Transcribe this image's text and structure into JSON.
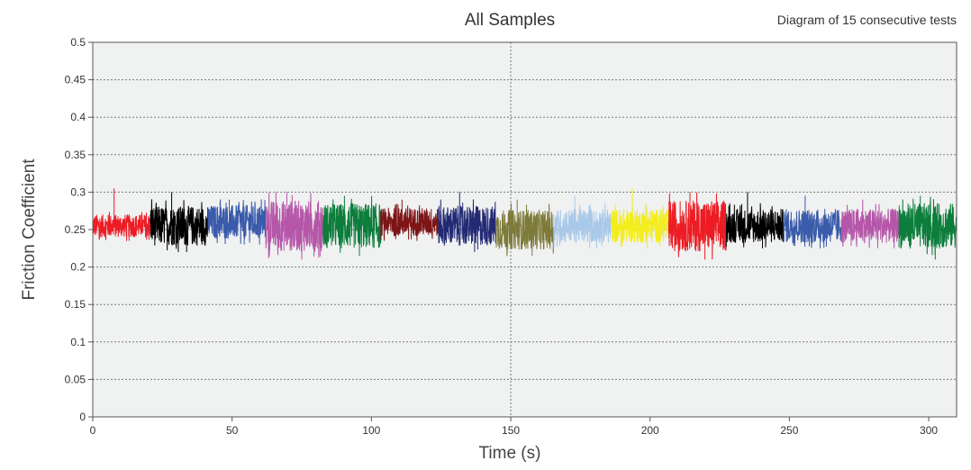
{
  "chart_data": {
    "type": "line",
    "title": "All Samples",
    "subtitle": "Diagram of 15 consecutive tests",
    "xlabel": "Time (s)",
    "ylabel": "Friction Coefficient",
    "xlim": [
      0,
      310
    ],
    "ylim": [
      0,
      0.5
    ],
    "x_ticks": [
      0,
      50,
      100,
      150,
      200,
      250,
      300
    ],
    "y_ticks": [
      0,
      0.05,
      0.1,
      0.15,
      0.2,
      0.25,
      0.3,
      0.35,
      0.4,
      0.45,
      0.5
    ],
    "y_tick_labels": [
      "0",
      "0.05",
      "0.1",
      "0.15",
      "0.2",
      "0.25",
      "0.3",
      "0.35",
      "0.4",
      "0.45",
      "0.5"
    ],
    "grid": true,
    "gridlines": {
      "x": [
        150
      ],
      "y": [
        0.05,
        0.1,
        0.15,
        0.2,
        0.25,
        0.3,
        0.35,
        0.4,
        0.45,
        0.5
      ]
    },
    "background_color": "#f0f1f1",
    "series": [
      {
        "x_range": [
          0,
          20.67
        ],
        "mean": 0.255,
        "min": 0.235,
        "max": 0.305,
        "color": "#ed1c24"
      },
      {
        "x_range": [
          20.67,
          41.33
        ],
        "mean": 0.255,
        "min": 0.22,
        "max": 0.3,
        "color": "#000000"
      },
      {
        "x_range": [
          41.33,
          62
        ],
        "mean": 0.26,
        "min": 0.23,
        "max": 0.29,
        "color": "#3a5bab"
      },
      {
        "x_range": [
          62,
          82.67
        ],
        "mean": 0.255,
        "min": 0.21,
        "max": 0.3,
        "color": "#b556a8"
      },
      {
        "x_range": [
          82.67,
          103.33
        ],
        "mean": 0.255,
        "min": 0.215,
        "max": 0.295,
        "color": "#0c7d3b"
      },
      {
        "x_range": [
          103.33,
          124
        ],
        "mean": 0.26,
        "min": 0.235,
        "max": 0.29,
        "color": "#7d1416"
      },
      {
        "x_range": [
          124,
          144.67
        ],
        "mean": 0.255,
        "min": 0.22,
        "max": 0.3,
        "color": "#232a73"
      },
      {
        "x_range": [
          144.67,
          165.33
        ],
        "mean": 0.25,
        "min": 0.215,
        "max": 0.29,
        "color": "#7d7a3a"
      },
      {
        "x_range": [
          165.33,
          186
        ],
        "mean": 0.255,
        "min": 0.225,
        "max": 0.295,
        "color": "#a9c9ea"
      },
      {
        "x_range": [
          186,
          206.67
        ],
        "mean": 0.255,
        "min": 0.225,
        "max": 0.305,
        "color": "#f4ed1c"
      },
      {
        "x_range": [
          206.67,
          227.33
        ],
        "mean": 0.255,
        "min": 0.21,
        "max": 0.3,
        "color": "#ed1c24"
      },
      {
        "x_range": [
          227.33,
          248
        ],
        "mean": 0.255,
        "min": 0.225,
        "max": 0.3,
        "color": "#000000"
      },
      {
        "x_range": [
          248,
          268.67
        ],
        "mean": 0.255,
        "min": 0.225,
        "max": 0.295,
        "color": "#3a5bab"
      },
      {
        "x_range": [
          268.67,
          289.33
        ],
        "mean": 0.255,
        "min": 0.225,
        "max": 0.29,
        "color": "#b556a8"
      },
      {
        "x_range": [
          289.33,
          310
        ],
        "mean": 0.255,
        "min": 0.21,
        "max": 0.295,
        "color": "#0c7d3b"
      }
    ]
  }
}
